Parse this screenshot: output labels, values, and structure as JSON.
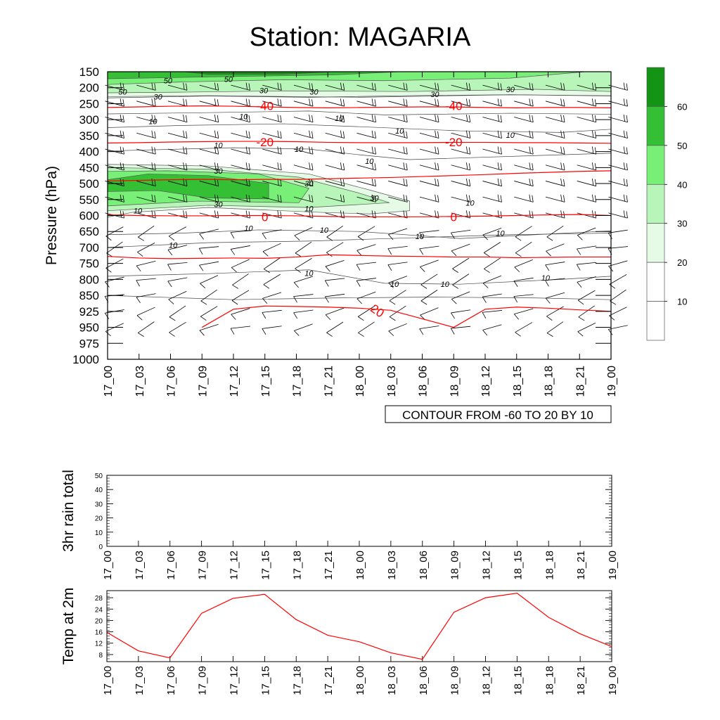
{
  "title": "Station: MAGARIA",
  "chart_data": [
    {
      "id": "cross-section",
      "type": "heatmap",
      "title": "Station: MAGARIA",
      "ylabel": "Pressure (hPa)",
      "xlabel": "",
      "time_labels": [
        "17_00",
        "17_03",
        "17_06",
        "17_09",
        "17_12",
        "17_15",
        "17_18",
        "17_21",
        "18_00",
        "18_03",
        "18_06",
        "18_09",
        "18_12",
        "18_15",
        "18_18",
        "18_21",
        "19_00"
      ],
      "pressure_levels": [
        150,
        200,
        250,
        300,
        350,
        400,
        450,
        500,
        550,
        600,
        650,
        700,
        750,
        800,
        850,
        925,
        950,
        975,
        1000
      ],
      "contour_note": "CONTOUR FROM -60 TO 20 BY 10",
      "legend": {
        "position": "right",
        "levels": [
          "60",
          "50",
          "40",
          "30",
          "20",
          "10"
        ],
        "colors": [
          "#149414",
          "#35bf35",
          "#78f078",
          "#b8f5b8",
          "#e6fbe6",
          "#ffffff",
          "#ffffff"
        ]
      },
      "wind_speed_contour_labels": [
        "50",
        "50",
        "50",
        "30",
        "30",
        "30",
        "30",
        "30",
        "30",
        "30",
        "30",
        "30",
        "10",
        "10",
        "10",
        "10",
        "10",
        "10",
        "10",
        "10",
        "10",
        "10",
        "10",
        "10",
        "10",
        "10",
        "10",
        "10",
        "10",
        "10",
        "10",
        "10"
      ],
      "temperature_contours": [
        {
          "label": "-40",
          "pressure": [
            262,
            260,
            258,
            257,
            258,
            260,
            262,
            263,
            262,
            261,
            260,
            260,
            262,
            263,
            262,
            262,
            263
          ]
        },
        {
          "label": "-20",
          "pressure": [
            373,
            372,
            370,
            369,
            368,
            368,
            369,
            371,
            372,
            372,
            372,
            371,
            371,
            372,
            372,
            373,
            374
          ]
        },
        {
          "label": "0",
          "pressure": [
            598,
            600,
            601,
            601,
            600,
            600,
            601,
            603,
            604,
            604,
            604,
            603,
            602,
            600,
            598,
            597,
            600
          ]
        },
        {
          "label": "",
          "pressure": [
            492,
            490,
            488,
            487,
            488,
            487,
            487,
            485,
            483,
            481,
            478,
            475,
            472,
            468,
            465,
            462,
            460
          ]
        },
        {
          "label": "",
          "pressure": [
            728,
            733,
            735,
            734,
            733,
            734,
            730,
            723,
            725,
            727,
            728,
            730,
            730,
            732,
            731,
            730,
            730
          ]
        },
        {
          "label": "20",
          "pressure": [
            null,
            null,
            null,
            950,
            915,
            900,
            902,
            905,
            910,
            920,
            null,
            950,
            915,
            905,
            910,
            918,
            925
          ]
        }
      ],
      "temperature_contour_labels": [
        "-40",
        "-40",
        "-20",
        "-20",
        "0",
        "0",
        "20"
      ],
      "colors": {
        "temperature": "#ff0000",
        "barb": "#000000"
      }
    },
    {
      "id": "rain",
      "type": "line",
      "ylabel": "3hr rain total",
      "ylim": [
        0,
        50
      ],
      "yticks": [
        0,
        10,
        20,
        30,
        40,
        50
      ],
      "categories": [
        "17_00",
        "17_03",
        "17_06",
        "17_09",
        "17_12",
        "17_15",
        "17_18",
        "17_21",
        "18_00",
        "18_03",
        "18_06",
        "18_09",
        "18_12",
        "18_15",
        "18_18",
        "18_21",
        "19_00"
      ],
      "values": [
        0,
        0,
        0,
        0,
        0,
        0,
        0,
        0,
        0,
        0,
        0,
        0,
        0,
        0,
        0,
        0,
        0
      ]
    },
    {
      "id": "temp2m",
      "type": "line",
      "ylabel": "Temp at 2m",
      "ylim": [
        5.5,
        30.5
      ],
      "yticks": [
        8,
        12,
        16,
        20,
        24,
        28
      ],
      "categories": [
        "17_00",
        "17_03",
        "17_06",
        "17_09",
        "17_12",
        "17_15",
        "17_18",
        "17_21",
        "18_00",
        "18_03",
        "18_06",
        "18_09",
        "18_12",
        "18_15",
        "18_18",
        "18_21",
        "19_00"
      ],
      "values": [
        15.8,
        9.3,
        6.8,
        22.5,
        27.8,
        29.2,
        20.3,
        14.8,
        12.5,
        8.6,
        6.3,
        22.9,
        28.0,
        29.6,
        21.1,
        15.3,
        10.8
      ],
      "line_color": "#ff0000"
    }
  ]
}
